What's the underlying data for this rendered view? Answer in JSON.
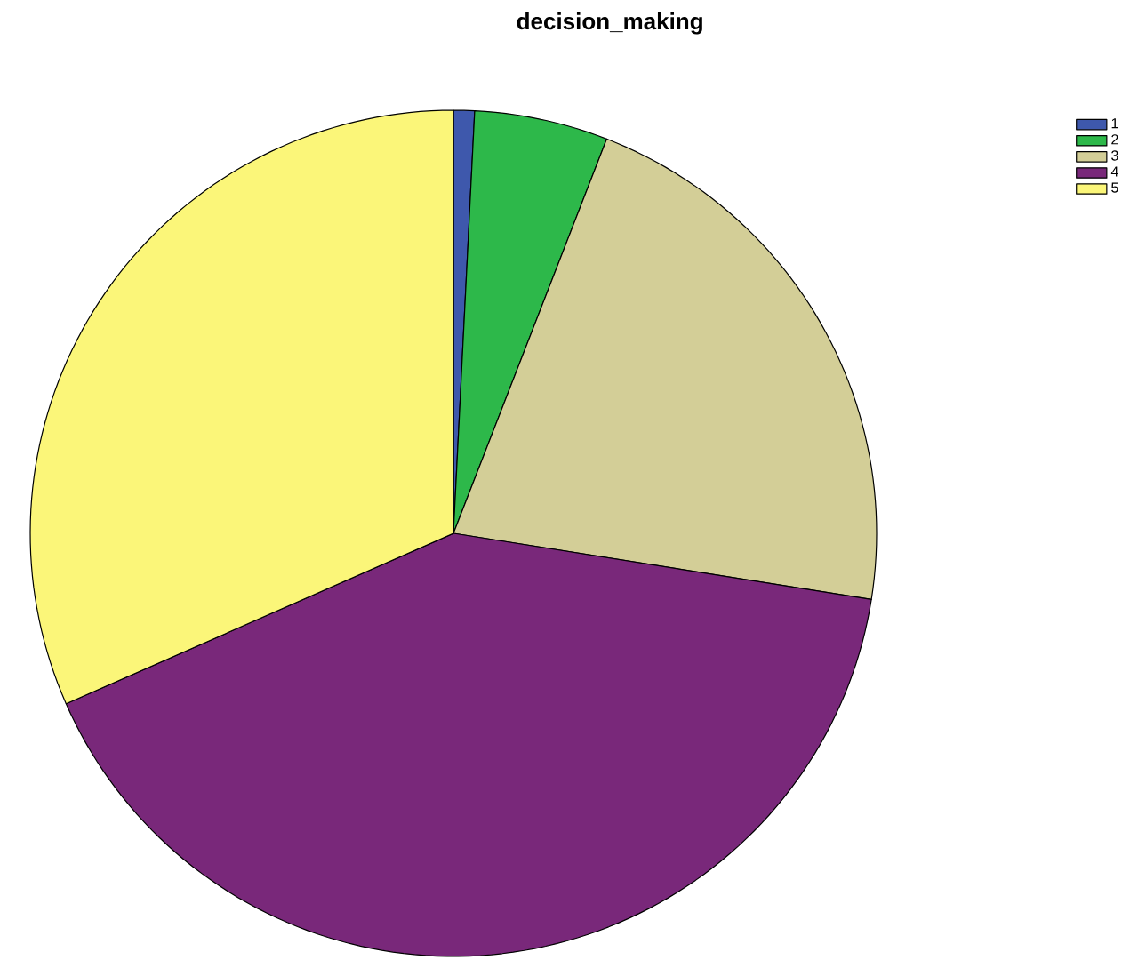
{
  "chart_data": {
    "type": "pie",
    "title": "decision_making",
    "categories": [
      "1",
      "2",
      "3",
      "4",
      "5"
    ],
    "values": [
      0.8,
      5.1,
      21.6,
      40.9,
      31.6
    ],
    "colors": [
      "#3e58ac",
      "#2db84a",
      "#d3ce97",
      "#79287a",
      "#fbf679"
    ],
    "legend": "top right"
  }
}
